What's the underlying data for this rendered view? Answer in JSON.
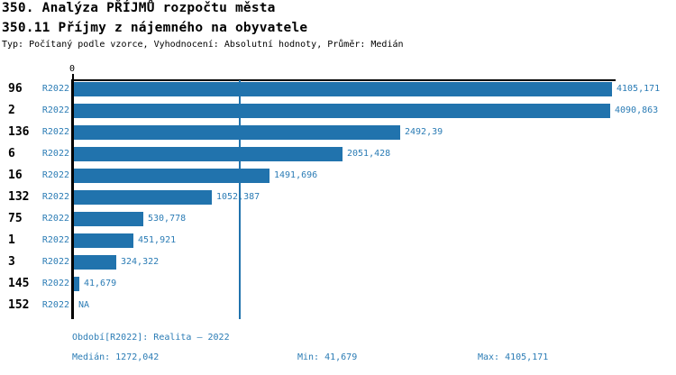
{
  "title1": "350. Analýza PŘÍJMŮ rozpočtu města",
  "title2": "350.11 Příjmy z nájemného na obyvatele",
  "subtitle": "Typ: Počítaný podle vzorce, Vyhodnocení: Absolutní hodnoty, Průměr: Medián",
  "axis": {
    "zero_label": "0"
  },
  "colors": {
    "bar": "#2173ad",
    "blue_text": "#2b7cb5",
    "axis": "#000000"
  },
  "chart_data": {
    "type": "bar",
    "orientation": "horizontal",
    "title": "350.11 Příjmy z nájemného na obyvatele",
    "xlim": [
      0,
      4105.171
    ],
    "median_value": 1272.042,
    "median_line": true,
    "rows": [
      {
        "id": "96",
        "period": "R2022",
        "value": 4105.171,
        "label": "4105,171"
      },
      {
        "id": "2",
        "period": "R2022",
        "value": 4090.863,
        "label": "4090,863"
      },
      {
        "id": "136",
        "period": "R2022",
        "value": 2492.39,
        "label": "2492,39"
      },
      {
        "id": "6",
        "period": "R2022",
        "value": 2051.428,
        "label": "2051,428"
      },
      {
        "id": "16",
        "period": "R2022",
        "value": 1491.696,
        "label": "1491,696"
      },
      {
        "id": "132",
        "period": "R2022",
        "value": 1052.387,
        "label": "1052,387"
      },
      {
        "id": "75",
        "period": "R2022",
        "value": 530.778,
        "label": "530,778"
      },
      {
        "id": "1",
        "period": "R2022",
        "value": 451.921,
        "label": "451,921"
      },
      {
        "id": "3",
        "period": "R2022",
        "value": 324.322,
        "label": "324,322"
      },
      {
        "id": "145",
        "period": "R2022",
        "value": 41.679,
        "label": "41,679"
      },
      {
        "id": "152",
        "period": "R2022",
        "value": null,
        "label": "NA"
      }
    ]
  },
  "footer": {
    "period": "Období[R2022]: Realita – 2022",
    "median": "Medián: 1272,042",
    "min": "Min: 41,679",
    "max": "Max: 4105,171"
  }
}
